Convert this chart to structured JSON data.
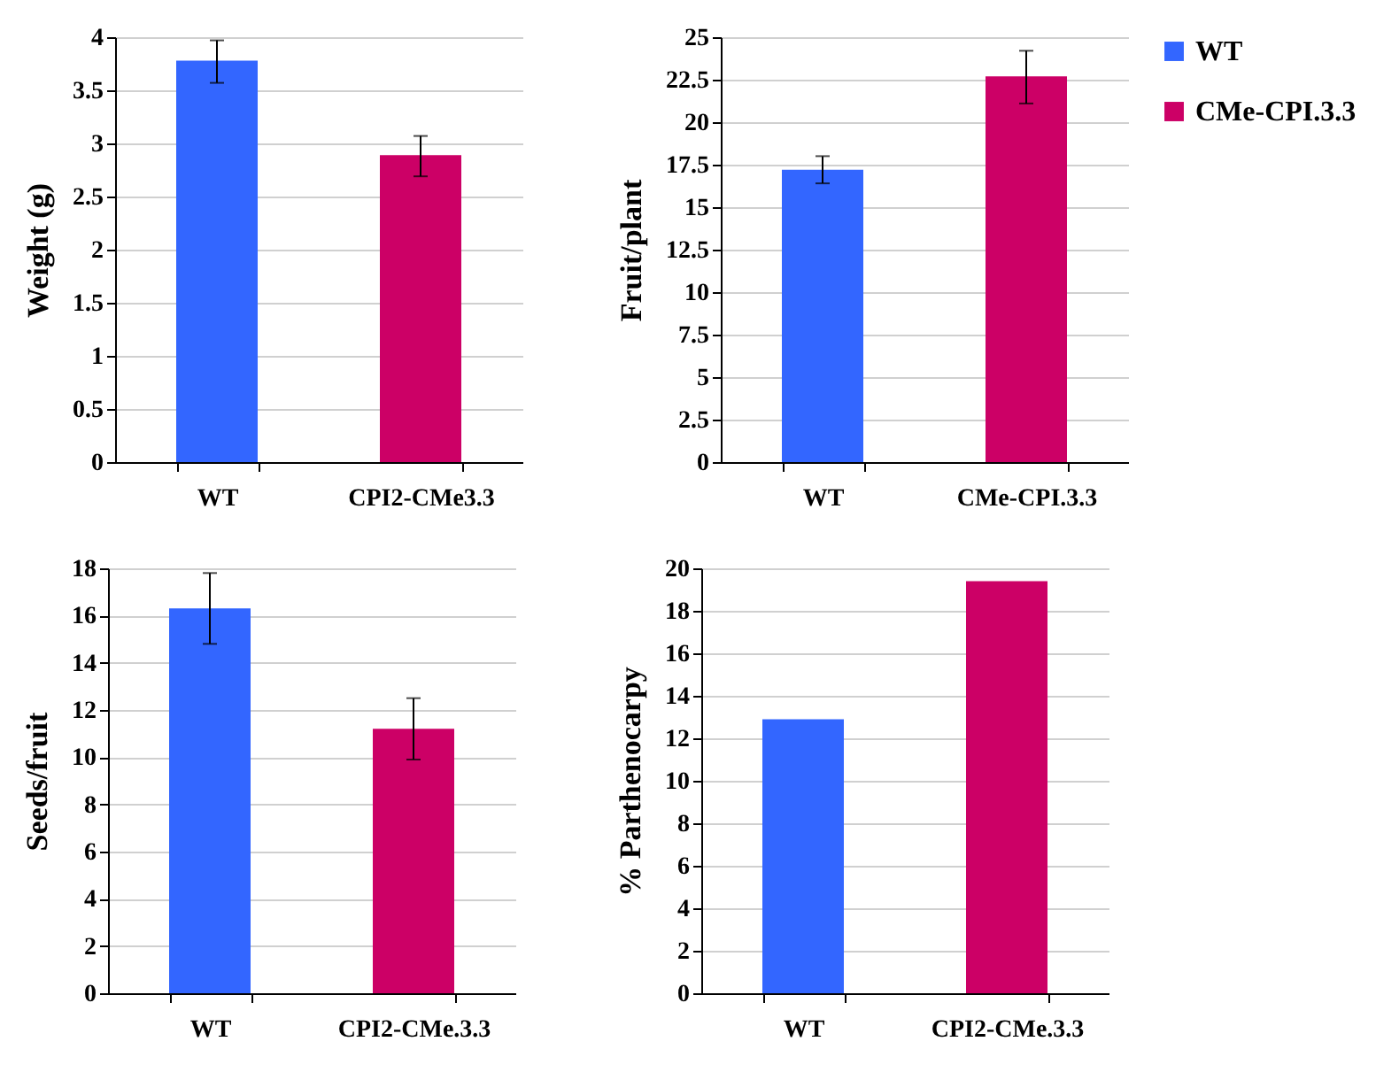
{
  "chart_data": [
    {
      "type": "bar",
      "categories": [
        "WT",
        "CPI2-CMe3.3"
      ],
      "values": [
        3.78,
        2.89
      ],
      "colors": [
        "#3366ff",
        "#cc0066"
      ],
      "errors": [
        [
          3.57,
          3.97
        ],
        [
          2.69,
          3.07
        ]
      ],
      "ylabel": "Weight (g)",
      "ylim": [
        0,
        4
      ],
      "yticks": [
        0,
        0.5,
        1,
        1.5,
        2,
        2.5,
        3,
        3.5,
        4
      ],
      "grid": "y"
    },
    {
      "type": "bar",
      "categories": [
        "WT",
        "CMe-CPI.3.3"
      ],
      "series": [
        {
          "name": "WT",
          "color": "#3366ff",
          "values": [
            17.2,
            null
          ],
          "errors": [
            [
              16.4,
              18.0
            ],
            null
          ]
        },
        {
          "name": "CMe-CPI.3.3",
          "color": "#cc0066",
          "values": [
            null,
            22.7
          ],
          "errors": [
            null,
            [
              21.1,
              24.2
            ]
          ]
        }
      ],
      "ylabel": "Fruit/plant",
      "ylim": [
        0,
        25
      ],
      "yticks": [
        0,
        2.5,
        5,
        7.5,
        10,
        12.5,
        15,
        17.5,
        20,
        22.5,
        25
      ],
      "grid": "y",
      "legend": "top right"
    },
    {
      "type": "bar",
      "categories": [
        "WT",
        "CPI2-CMe.3.3"
      ],
      "values": [
        16.3,
        11.2
      ],
      "colors": [
        "#3366ff",
        "#cc0066"
      ],
      "errors": [
        [
          14.8,
          17.8
        ],
        [
          9.9,
          12.5
        ]
      ],
      "ylabel": "Seeds/fruit",
      "ylim": [
        0,
        18
      ],
      "yticks": [
        0,
        2,
        4,
        6,
        8,
        10,
        12,
        14,
        16,
        18
      ],
      "grid": "y"
    },
    {
      "type": "bar",
      "categories": [
        "WT",
        "CPI2-CMe.3.3"
      ],
      "values": [
        12.9,
        19.4
      ],
      "colors": [
        "#3366ff",
        "#cc0066"
      ],
      "ylabel": "% Parthenocarpy",
      "ylim": [
        0,
        20
      ],
      "yticks": [
        0,
        2,
        4,
        6,
        8,
        10,
        12,
        14,
        16,
        18,
        20
      ],
      "grid": "y"
    }
  ]
}
